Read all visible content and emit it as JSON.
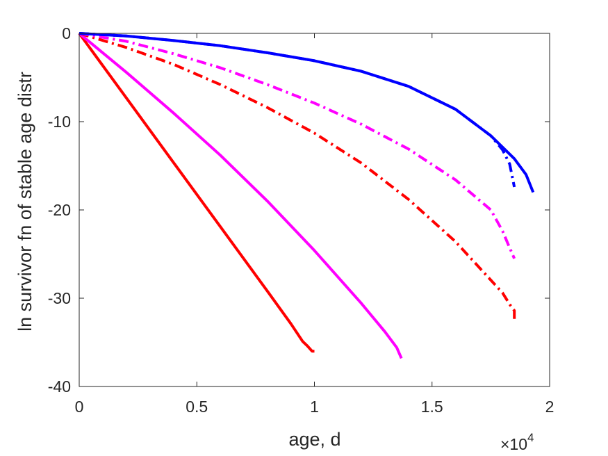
{
  "chart_data": {
    "type": "line",
    "title": "",
    "xlabel": "age, d",
    "ylabel": "ln survivor fn of stable age distr",
    "x_multiplier_base": "×10",
    "x_multiplier_exp": "4",
    "xlim": [
      0,
      2
    ],
    "ylim": [
      -40,
      0
    ],
    "x_ticks": [
      0,
      0.5,
      1,
      1.5,
      2
    ],
    "x_tick_labels": [
      "0",
      "0.5",
      "1",
      "1.5",
      "2"
    ],
    "y_ticks": [
      0,
      -10,
      -20,
      -30,
      -40
    ],
    "y_tick_labels": [
      "0",
      "-10",
      "-20",
      "-30",
      "-40"
    ],
    "grid": false,
    "series": [
      {
        "color": "#ff0000",
        "dash": "solid",
        "x": [
          0,
          0.2,
          0.4,
          0.6,
          0.8,
          0.9,
          0.95,
          0.97,
          0.99,
          1.0
        ],
        "y": [
          0,
          -7.3,
          -14.6,
          -21.9,
          -29.2,
          -32.9,
          -34.9,
          -35.4,
          -36.0,
          -36.0
        ]
      },
      {
        "color": "#ff00ff",
        "dash": "solid",
        "x": [
          0,
          0.2,
          0.4,
          0.6,
          0.8,
          1.0,
          1.2,
          1.3,
          1.35,
          1.37
        ],
        "y": [
          0,
          -4.4,
          -9.0,
          -13.8,
          -19.0,
          -24.6,
          -30.6,
          -33.8,
          -35.6,
          -36.8
        ]
      },
      {
        "color": "#ff0000",
        "dash": "dashdot",
        "x": [
          0,
          0.2,
          0.4,
          0.6,
          0.8,
          1.0,
          1.2,
          1.4,
          1.6,
          1.8,
          1.83,
          1.85,
          1.85
        ],
        "y": [
          0,
          -1.6,
          -3.5,
          -5.8,
          -8.4,
          -11.3,
          -14.7,
          -18.8,
          -23.6,
          -29.4,
          -30.7,
          -31.4,
          -32.6
        ]
      },
      {
        "color": "#ff00ff",
        "dash": "dashdot",
        "x": [
          0,
          0.2,
          0.4,
          0.6,
          0.8,
          1.0,
          1.2,
          1.4,
          1.6,
          1.75,
          1.8,
          1.83,
          1.85
        ],
        "y": [
          0,
          -0.9,
          -2.3,
          -3.9,
          -5.8,
          -7.9,
          -10.3,
          -13.1,
          -16.6,
          -20.0,
          -22.4,
          -24.3,
          -25.5
        ]
      },
      {
        "color": "#0000ff",
        "dash": "dashdot",
        "x": [
          0,
          0.2,
          0.4,
          0.6,
          0.8,
          1.0,
          1.2,
          1.4,
          1.6,
          1.75,
          1.8,
          1.83,
          1.85
        ],
        "y": [
          0,
          -0.3,
          -0.8,
          -1.4,
          -2.2,
          -3.1,
          -4.3,
          -6.0,
          -8.6,
          -11.6,
          -13.2,
          -14.8,
          -17.4
        ]
      },
      {
        "color": "#0000ff",
        "dash": "solid",
        "x": [
          0,
          0.2,
          0.4,
          0.6,
          0.8,
          1.0,
          1.2,
          1.4,
          1.6,
          1.75,
          1.85,
          1.9,
          1.93
        ],
        "y": [
          0,
          -0.3,
          -0.8,
          -1.4,
          -2.2,
          -3.1,
          -4.3,
          -6.0,
          -8.6,
          -11.6,
          -14.2,
          -16.0,
          -18.0
        ]
      }
    ]
  }
}
